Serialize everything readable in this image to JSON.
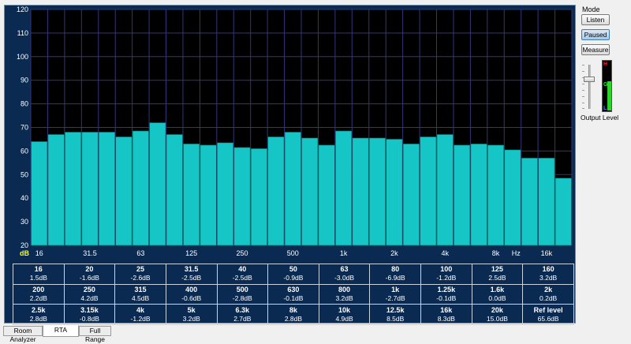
{
  "colors": {
    "panel_bg": "#0a2a52",
    "plot_bg": "#000000",
    "grid": "#34347a",
    "bar": "#16c6c6",
    "bar_edge": "#0b5e5e"
  },
  "chart_data": {
    "type": "bar",
    "y_unit": "dB",
    "x_unit": "Hz",
    "ylim": [
      20,
      120
    ],
    "yticks": [
      20,
      30,
      40,
      50,
      60,
      70,
      80,
      90,
      100,
      110,
      120
    ],
    "x_tick_labels": [
      {
        "label": "16",
        "band": 0
      },
      {
        "label": "31.5",
        "band": 3
      },
      {
        "label": "63",
        "band": 6
      },
      {
        "label": "125",
        "band": 9
      },
      {
        "label": "250",
        "band": 12
      },
      {
        "label": "500",
        "band": 15
      },
      {
        "label": "1k",
        "band": 18
      },
      {
        "label": "2k",
        "band": 21
      },
      {
        "label": "4k",
        "band": 24
      },
      {
        "label": "8k",
        "band": 27
      },
      {
        "label": "16k",
        "band": 30
      }
    ],
    "values": [
      64,
      67,
      68,
      68,
      68,
      66,
      68.5,
      72,
      67,
      63,
      62.5,
      63.5,
      61.5,
      61,
      66,
      68,
      65.5,
      62.5,
      68.5,
      65.5,
      65.5,
      65,
      63,
      66,
      67,
      62.5,
      63,
      62.5,
      60.5,
      57,
      57,
      48.5
    ],
    "grid": true
  },
  "band_table": [
    [
      {
        "f": "16",
        "v": "1.5dB"
      },
      {
        "f": "20",
        "v": "-1.6dB"
      },
      {
        "f": "25",
        "v": "-2.6dB"
      },
      {
        "f": "31.5",
        "v": "-2.5dB"
      },
      {
        "f": "40",
        "v": "-2.5dB"
      },
      {
        "f": "50",
        "v": "-0.9dB"
      },
      {
        "f": "63",
        "v": "-3.0dB"
      },
      {
        "f": "80",
        "v": "-6.9dB"
      },
      {
        "f": "100",
        "v": "-1.2dB"
      },
      {
        "f": "125",
        "v": "2.5dB"
      },
      {
        "f": "160",
        "v": "3.2dB"
      }
    ],
    [
      {
        "f": "200",
        "v": "2.2dB"
      },
      {
        "f": "250",
        "v": "4.2dB"
      },
      {
        "f": "315",
        "v": "4.5dB"
      },
      {
        "f": "400",
        "v": "-0.6dB"
      },
      {
        "f": "500",
        "v": "-2.8dB"
      },
      {
        "f": "630",
        "v": "-0.1dB"
      },
      {
        "f": "800",
        "v": "3.2dB"
      },
      {
        "f": "1k",
        "v": "-2.7dB"
      },
      {
        "f": "1.25k",
        "v": "-0.1dB"
      },
      {
        "f": "1.6k",
        "v": "0.0dB"
      },
      {
        "f": "2k",
        "v": "0.2dB"
      }
    ],
    [
      {
        "f": "2.5k",
        "v": "2.8dB"
      },
      {
        "f": "3.15k",
        "v": "-0.8dB"
      },
      {
        "f": "4k",
        "v": "-1.2dB"
      },
      {
        "f": "5k",
        "v": "3.2dB"
      },
      {
        "f": "6.3k",
        "v": "2.7dB"
      },
      {
        "f": "8k",
        "v": "2.8dB"
      },
      {
        "f": "10k",
        "v": "4.9dB"
      },
      {
        "f": "12.5k",
        "v": "8.5dB"
      },
      {
        "f": "16k",
        "v": "8.3dB"
      },
      {
        "f": "20k",
        "v": "15.0dB"
      },
      {
        "f": "Ref level",
        "v": "65.6dB"
      }
    ]
  ],
  "side_panel": {
    "mode_title": "Mode",
    "listen_label": "Listen",
    "paused_label": "Paused",
    "measure_label": "Measure",
    "active_mode": "Paused",
    "output_label": "Output Level",
    "meter": {
      "h": "H",
      "g": "G",
      "l": "L",
      "level": 0.6
    }
  },
  "tabs": {
    "room": "Room Analyzer",
    "rta": "RTA",
    "full": "Full Range",
    "active": "RTA"
  }
}
